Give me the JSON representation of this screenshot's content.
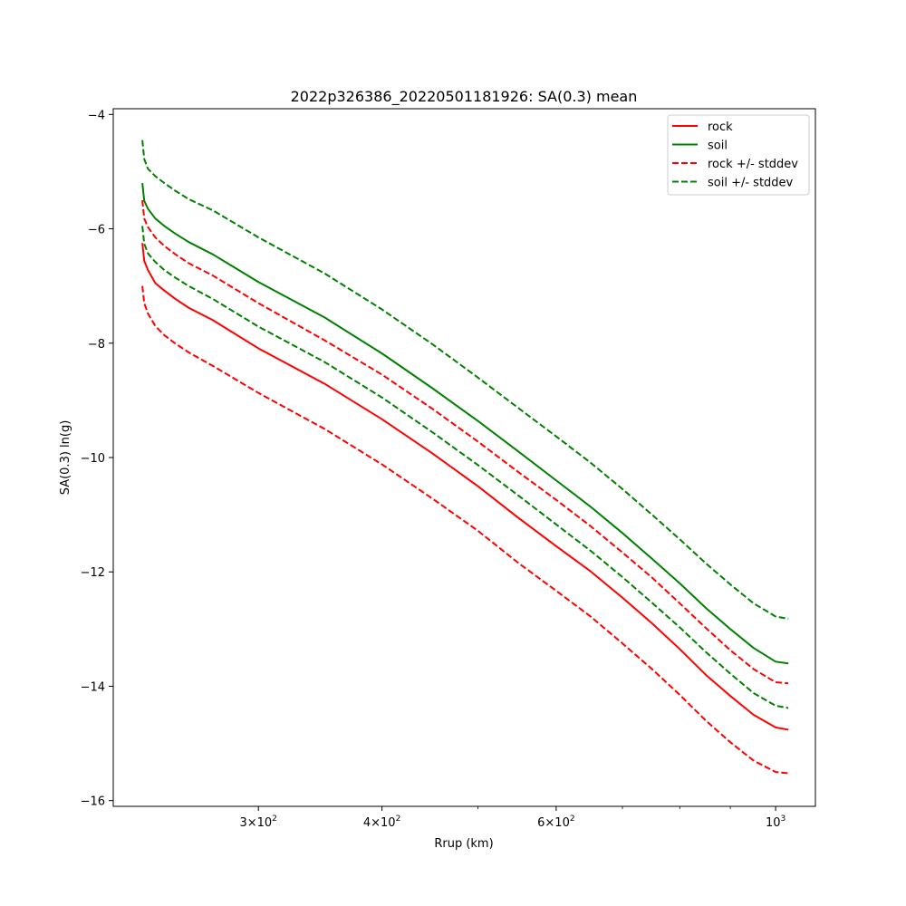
{
  "chart_data": {
    "type": "line",
    "title": "2022p326386_20220501181926: SA(0.3) mean",
    "xlabel": "Rrup (km)",
    "ylabel": "SA(0.3) ln(g)",
    "xscale": "log",
    "xlim": [
      214,
      1097
    ],
    "ylim": [
      -16.1,
      -3.9
    ],
    "yticks": [
      -16,
      -14,
      -12,
      -10,
      -8,
      -6,
      -4
    ],
    "xticks": [
      {
        "value": 300,
        "base": "3×10",
        "exp": "2"
      },
      {
        "value": 400,
        "base": "4×10",
        "exp": "2"
      },
      {
        "value": 600,
        "base": "6×10",
        "exp": "2"
      },
      {
        "value": 1000,
        "base": "10",
        "exp": "3"
      }
    ],
    "xminor_ticks": [
      500,
      700,
      800,
      900
    ],
    "grid": false,
    "legend": "top-right",
    "x": [
      229,
      230,
      232,
      236,
      241,
      247,
      255,
      270,
      300,
      350,
      400,
      450,
      500,
      550,
      600,
      650,
      700,
      750,
      800,
      850,
      900,
      950,
      1000,
      1030
    ],
    "series": [
      {
        "name": "rock",
        "color": "#ff0000",
        "dash": "solid",
        "values": [
          -6.25,
          -6.56,
          -6.72,
          -6.95,
          -7.08,
          -7.22,
          -7.38,
          -7.6,
          -8.09,
          -8.71,
          -9.33,
          -9.93,
          -10.5,
          -11.06,
          -11.55,
          -11.99,
          -12.45,
          -12.9,
          -13.35,
          -13.8,
          -14.17,
          -14.5,
          -14.72,
          -14.76
        ]
      },
      {
        "name": "soil",
        "color": "#008000",
        "dash": "solid",
        "values": [
          -5.2,
          -5.51,
          -5.65,
          -5.82,
          -5.95,
          -6.08,
          -6.23,
          -6.45,
          -6.93,
          -7.55,
          -8.18,
          -8.79,
          -9.36,
          -9.9,
          -10.4,
          -10.86,
          -11.32,
          -11.77,
          -12.2,
          -12.63,
          -13.0,
          -13.33,
          -13.57,
          -13.6
        ]
      },
      {
        "name": "rock +/- stddev",
        "color": "#ff0000",
        "dash": "dashed",
        "values": [
          -5.5,
          -5.82,
          -5.97,
          -6.15,
          -6.3,
          -6.44,
          -6.6,
          -6.82,
          -7.3,
          -7.95,
          -8.55,
          -9.15,
          -9.72,
          -10.26,
          -10.74,
          -11.2,
          -11.66,
          -12.1,
          -12.55,
          -12.98,
          -13.37,
          -13.7,
          -13.93,
          -13.95
        ]
      },
      {
        "name": "rock +/- stddev",
        "color": "#ff0000",
        "dash": "dashed",
        "legend": false,
        "values": [
          -7.0,
          -7.3,
          -7.48,
          -7.7,
          -7.86,
          -8.0,
          -8.16,
          -8.4,
          -8.87,
          -9.5,
          -10.12,
          -10.72,
          -11.28,
          -11.85,
          -12.33,
          -12.78,
          -13.25,
          -13.7,
          -14.15,
          -14.6,
          -14.98,
          -15.3,
          -15.5,
          -15.52
        ]
      },
      {
        "name": "soil +/- stddev",
        "color": "#008000",
        "dash": "dashed",
        "values": [
          -4.45,
          -4.78,
          -4.95,
          -5.08,
          -5.2,
          -5.33,
          -5.48,
          -5.68,
          -6.15,
          -6.78,
          -7.41,
          -8.02,
          -8.6,
          -9.14,
          -9.63,
          -10.09,
          -10.55,
          -11.0,
          -11.43,
          -11.85,
          -12.22,
          -12.55,
          -12.78,
          -12.82
        ]
      },
      {
        "name": "soil +/- stddev",
        "color": "#008000",
        "dash": "dashed",
        "legend": false,
        "values": [
          -5.95,
          -6.26,
          -6.43,
          -6.58,
          -6.72,
          -6.85,
          -7.0,
          -7.23,
          -7.71,
          -8.33,
          -8.95,
          -9.56,
          -10.13,
          -10.67,
          -11.17,
          -11.63,
          -12.09,
          -12.54,
          -12.97,
          -13.4,
          -13.78,
          -14.12,
          -14.34,
          -14.38
        ]
      }
    ]
  }
}
